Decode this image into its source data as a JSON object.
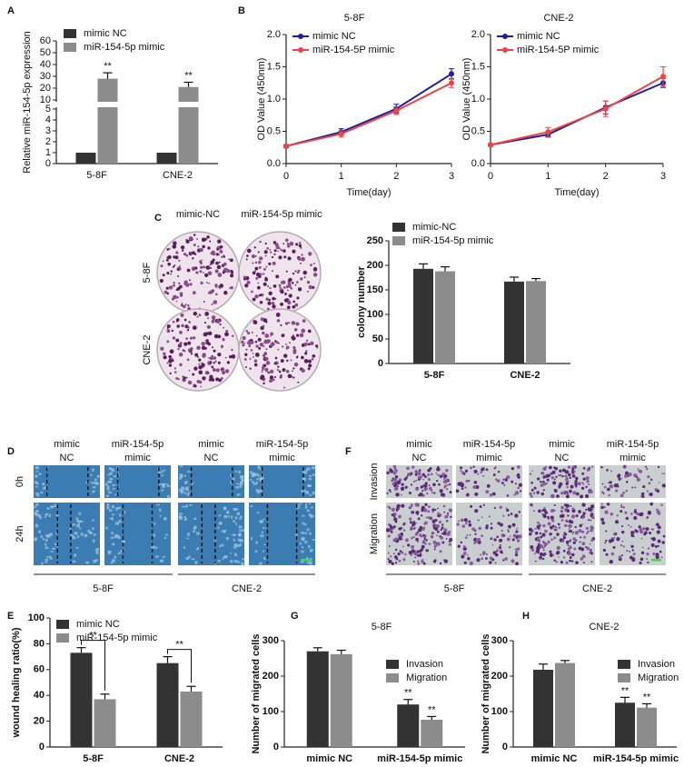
{
  "figure": {
    "panel_labels": [
      "A",
      "B",
      "C",
      "D",
      "E",
      "F",
      "G",
      "H"
    ],
    "C": {
      "columns": [
        "mimic-NC",
        "miR-154-5p mimic"
      ],
      "rows": [
        "5-8F",
        "CNE-2"
      ]
    },
    "D": {
      "columns": [
        [
          "mimic",
          "NC"
        ],
        [
          "miR-154-5p",
          "mimic"
        ],
        [
          "mimic",
          "NC"
        ],
        [
          "miR-154-5p",
          "mimic"
        ]
      ],
      "rows": [
        "0h",
        "24h"
      ],
      "groups": [
        "5-8F",
        "CNE-2"
      ]
    },
    "F": {
      "columns": [
        [
          "mimic",
          "NC"
        ],
        [
          "miR-154-5p",
          "mimic"
        ],
        [
          "mimic",
          "NC"
        ],
        [
          "miR-154-5p",
          "mimic"
        ]
      ],
      "rows": [
        "Invasion",
        "Migration"
      ],
      "groups": [
        "5-8F",
        "CNE-2"
      ]
    }
  },
  "chart_data": [
    {
      "type": "bar",
      "ylabel": "Relative miR-154-5p expression",
      "categories": [
        "5-8F",
        "CNE-2"
      ],
      "series": [
        {
          "name": "mimic NC",
          "color": "#333333",
          "values": [
            1,
            1
          ]
        },
        {
          "name": "miR-154-5p mimic",
          "color": "#8c8c8c",
          "values": [
            28,
            21
          ],
          "errors": [
            5,
            4
          ],
          "annotations": [
            "**",
            "**"
          ]
        }
      ],
      "ylim": [
        0,
        60
      ],
      "axis_break": [
        5,
        10
      ],
      "yticks": [
        0,
        1,
        2,
        3,
        4,
        5,
        10,
        20,
        30,
        40,
        50,
        60
      ]
    },
    {
      "type": "line",
      "title": "5-8F",
      "xlabel": "Time(day)",
      "ylabel": "OD Value (450nm)",
      "x": [
        0,
        1,
        2,
        3
      ],
      "series": [
        {
          "name": "mimic NC",
          "color": "#1f1f9e",
          "values": [
            0.27,
            0.49,
            0.85,
            1.39
          ],
          "errors": [
            0.02,
            0.05,
            0.07,
            0.08
          ]
        },
        {
          "name": "miR-154-5P mimic",
          "color": "#ee4444",
          "values": [
            0.27,
            0.46,
            0.82,
            1.25
          ],
          "errors": [
            0.02,
            0.05,
            0.06,
            0.07
          ]
        }
      ],
      "xlim": [
        0,
        3
      ],
      "xticks": [
        0,
        1,
        2,
        3
      ],
      "ylim": [
        0,
        2
      ],
      "yticks": [
        {
          "value": 0,
          "label": "0.0"
        },
        0.5,
        {
          "value": 1,
          "label": "1.0"
        },
        1.5,
        {
          "value": 2,
          "label": "2.0"
        }
      ]
    },
    {
      "type": "line",
      "title": "CNE-2",
      "xlabel": "Time(day)",
      "ylabel": "OD Value (450nm)",
      "x": [
        0,
        1,
        2,
        3
      ],
      "series": [
        {
          "name": "mimic NC",
          "color": "#1f1f9e",
          "values": [
            0.29,
            0.45,
            0.87,
            1.25
          ],
          "errors": [
            0.02,
            0.04,
            0.1,
            0.07
          ]
        },
        {
          "name": "miR-154-5P mimic",
          "color": "#ee4444",
          "values": [
            0.29,
            0.49,
            0.85,
            1.35
          ],
          "errors": [
            0.02,
            0.07,
            0.12,
            0.15
          ]
        }
      ],
      "xlim": [
        0,
        3
      ],
      "xticks": [
        0,
        1,
        2,
        3
      ],
      "ylim": [
        0,
        2
      ],
      "yticks": [
        {
          "value": 0,
          "label": "0.0"
        },
        0.5,
        {
          "value": 1,
          "label": "1.0"
        },
        1.5,
        {
          "value": 2,
          "label": "2.0"
        }
      ]
    },
    {
      "type": "bar",
      "ylabel": "colony number",
      "categories": [
        "5-8F",
        "CNE-2"
      ],
      "series": [
        {
          "name": "mimic-NC",
          "color": "#333333",
          "values": [
            193,
            167
          ],
          "errors": [
            10,
            9
          ]
        },
        {
          "name": "miR-154-5p mimic",
          "color": "#8c8c8c",
          "values": [
            188,
            168
          ],
          "errors": [
            9,
            5
          ]
        }
      ],
      "ylim": [
        0,
        250
      ],
      "yticks": [
        0,
        50,
        100,
        150,
        200,
        250
      ]
    },
    {
      "type": "bar",
      "ylabel": "wound healing ratio(%)",
      "categories": [
        "5-8F",
        "CNE-2"
      ],
      "series": [
        {
          "name": "mimic NC",
          "color": "#333333",
          "values": [
            73,
            65
          ],
          "errors": [
            4,
            5
          ]
        },
        {
          "name": "miR-154-5p mimic",
          "color": "#8c8c8c",
          "values": [
            37,
            43
          ],
          "errors": [
            4,
            4
          ]
        }
      ],
      "annotations": [
        "**",
        "**"
      ],
      "ylim": [
        0,
        100
      ],
      "yticks": [
        0,
        20,
        40,
        60,
        80,
        100
      ]
    },
    {
      "type": "bar",
      "title": "5-8F",
      "ylabel": "Number of migrated cells",
      "categories": [
        "mimic NC",
        "miR-154-5p mimic"
      ],
      "series": [
        {
          "name": "Invasion",
          "color": "#333333",
          "values": [
            270,
            120
          ],
          "errors": [
            10,
            14
          ],
          "annotations": [
            null,
            "**"
          ]
        },
        {
          "name": "Migration",
          "color": "#8c8c8c",
          "values": [
            262,
            77
          ],
          "errors": [
            11,
            9
          ],
          "annotations": [
            null,
            "**"
          ]
        }
      ],
      "ylim": [
        0,
        300
      ],
      "yticks": [
        0,
        100,
        200,
        300
      ]
    },
    {
      "type": "bar",
      "title": "CNE-2",
      "ylabel": "Number of migrated cells",
      "categories": [
        "mimic NC",
        "miR-154-5p mimic"
      ],
      "series": [
        {
          "name": "Invasion",
          "color": "#333333",
          "values": [
            218,
            125
          ],
          "errors": [
            16,
            15
          ],
          "annotations": [
            null,
            "**"
          ]
        },
        {
          "name": "Migration",
          "color": "#8c8c8c",
          "values": [
            237,
            111
          ],
          "errors": [
            7,
            11
          ],
          "annotations": [
            null,
            "**"
          ]
        }
      ],
      "ylim": [
        0,
        300
      ],
      "yticks": [
        0,
        100,
        200,
        300
      ]
    }
  ]
}
